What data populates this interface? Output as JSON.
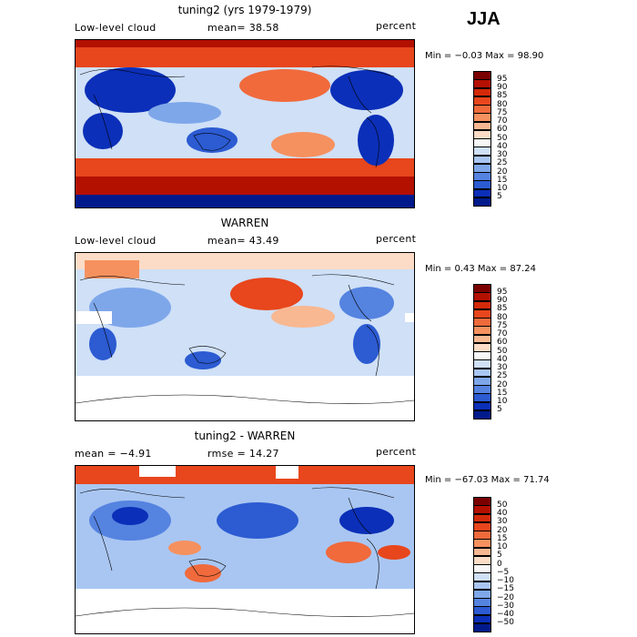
{
  "season": "JJA",
  "panels": [
    {
      "title": "tuning2 (yrs 1979-1979)",
      "left_label": "Low-level cloud",
      "stat_label": "mean=  38.58",
      "unit": "percent",
      "minmax": "Min =  −0.03  Max =  98.90",
      "colorbar_labels": [
        "95",
        "90",
        "85",
        "80",
        "75",
        "70",
        "60",
        "50",
        "40",
        "30",
        "25",
        "20",
        "15",
        "10",
        "5"
      ],
      "colorbar_colors": [
        "#7a0000",
        "#b31000",
        "#d42a0a",
        "#e8461c",
        "#f06a3c",
        "#f5915f",
        "#f8b892",
        "#fcdcc6",
        "#f7f7f7",
        "#cfe0f7",
        "#a9c6f2",
        "#7ea7ea",
        "#5583e0",
        "#2c5bd2",
        "#0b2fb8",
        "#001a8c"
      ]
    },
    {
      "title": "WARREN",
      "left_label": "Low-level cloud",
      "stat_label": "mean=  43.49",
      "unit": "percent",
      "minmax": "Min =   0.43  Max =  87.24",
      "colorbar_labels": [
        "95",
        "90",
        "85",
        "80",
        "75",
        "70",
        "60",
        "50",
        "40",
        "30",
        "25",
        "20",
        "15",
        "10",
        "5"
      ],
      "colorbar_colors": [
        "#7a0000",
        "#b31000",
        "#d42a0a",
        "#e8461c",
        "#f06a3c",
        "#f5915f",
        "#f8b892",
        "#fcdcc6",
        "#f7f7f7",
        "#cfe0f7",
        "#a9c6f2",
        "#7ea7ea",
        "#5583e0",
        "#2c5bd2",
        "#0b2fb8",
        "#001a8c"
      ]
    },
    {
      "title": "tuning2 - WARREN",
      "left_label": "mean =  −4.91",
      "stat_label": "rmse =  14.27",
      "unit": "percent",
      "minmax": "Min = −67.03  Max =  71.74",
      "colorbar_labels": [
        "50",
        "40",
        "30",
        "20",
        "15",
        "10",
        "5",
        "0",
        "−5",
        "−10",
        "−15",
        "−20",
        "−30",
        "−40",
        "−50"
      ],
      "colorbar_colors": [
        "#7a0000",
        "#b31000",
        "#d42a0a",
        "#e8461c",
        "#f06a3c",
        "#f5915f",
        "#f8b892",
        "#fcdcc6",
        "#f7f7f7",
        "#cfe0f7",
        "#a9c6f2",
        "#7ea7ea",
        "#5583e0",
        "#2c5bd2",
        "#0b2fb8",
        "#001a8c"
      ]
    }
  ]
}
